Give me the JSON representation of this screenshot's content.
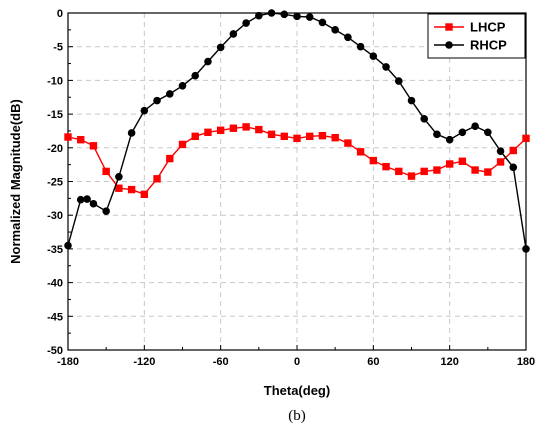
{
  "chart_data": {
    "type": "line",
    "xlabel": "Theta(deg)",
    "ylabel": "Normalized Magnitude(dB)",
    "xlim": [
      -180,
      180
    ],
    "ylim": [
      -50,
      0
    ],
    "xticks": [
      -180,
      -120,
      -60,
      0,
      60,
      120,
      180
    ],
    "yticks": [
      0,
      -5,
      -10,
      -15,
      -20,
      -25,
      -30,
      -35,
      -40,
      -45,
      -50
    ],
    "grid": true,
    "legend_position": "top-right",
    "caption": "(b)",
    "series": [
      {
        "name": "LHCP",
        "color": "#ff0000",
        "marker": "square",
        "x": [
          -180,
          -170,
          -160,
          -150,
          -140,
          -130,
          -120,
          -110,
          -100,
          -90,
          -80,
          -70,
          -60,
          -50,
          -40,
          -30,
          -20,
          -10,
          0,
          10,
          20,
          30,
          40,
          50,
          60,
          70,
          80,
          90,
          100,
          110,
          120,
          130,
          140,
          150,
          160,
          170,
          180
        ],
        "y": [
          -18.4,
          -18.8,
          -19.7,
          -23.5,
          -26.0,
          -26.2,
          -26.9,
          -24.6,
          -21.6,
          -19.5,
          -18.3,
          -17.7,
          -17.4,
          -17.1,
          -16.9,
          -17.3,
          -18.0,
          -18.3,
          -18.6,
          -18.3,
          -18.2,
          -18.5,
          -19.3,
          -20.6,
          -21.9,
          -22.8,
          -23.5,
          -24.2,
          -23.5,
          -23.3,
          -22.4,
          -22.0,
          -23.3,
          -23.6,
          -22.1,
          -20.4,
          -18.6
        ]
      },
      {
        "name": "RHCP",
        "color": "#000000",
        "marker": "circle",
        "x": [
          -180,
          -170,
          -165,
          -160,
          -150,
          -140,
          -130,
          -120,
          -110,
          -100,
          -90,
          -80,
          -70,
          -60,
          -50,
          -40,
          -30,
          -20,
          -10,
          0,
          10,
          20,
          30,
          40,
          50,
          60,
          70,
          80,
          90,
          100,
          110,
          120,
          130,
          140,
          150,
          160,
          170,
          180
        ],
        "y": [
          -34.5,
          -27.7,
          -27.6,
          -28.3,
          -29.4,
          -24.3,
          -17.8,
          -14.5,
          -13.0,
          -12.0,
          -10.8,
          -9.3,
          -7.2,
          -5.1,
          -3.1,
          -1.5,
          -0.4,
          0.0,
          -0.2,
          -0.5,
          -0.6,
          -1.4,
          -2.5,
          -3.6,
          -5.0,
          -6.4,
          -8.0,
          -10.1,
          -13.0,
          -15.7,
          -18.0,
          -18.8,
          -17.7,
          -16.8,
          -17.7,
          -20.5,
          -22.9,
          -35.0
        ]
      }
    ]
  }
}
